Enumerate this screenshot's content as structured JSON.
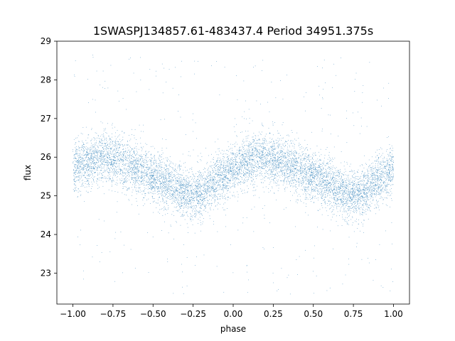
{
  "chart_data": {
    "type": "scatter",
    "title": "1SWASPJ134857.61-483437.4 Period 34951.375s",
    "xlabel": "phase",
    "ylabel": "flux",
    "xlim": [
      -1.1,
      1.1
    ],
    "ylim": [
      22.2,
      29.0
    ],
    "xticks": [
      -1.0,
      -0.75,
      -0.5,
      -0.25,
      0.0,
      0.25,
      0.5,
      0.75,
      1.0
    ],
    "xtick_labels": [
      "−1.00",
      "−0.75",
      "−0.50",
      "−0.25",
      "0.00",
      "0.25",
      "0.50",
      "0.75",
      "1.00"
    ],
    "yticks": [
      23,
      24,
      25,
      26,
      27,
      28,
      29
    ],
    "ytick_labels": [
      "23",
      "24",
      "25",
      "26",
      "27",
      "28",
      "29"
    ],
    "grid": false,
    "point_color": "#1f77b4",
    "series": [
      {
        "values_description_points": [
          {
            "x": -1.0,
            "y": 25.7
          },
          {
            "x": -0.9,
            "y": 25.9
          },
          {
            "x": -0.8,
            "y": 26.0
          },
          {
            "x": -0.7,
            "y": 25.9
          },
          {
            "x": -0.6,
            "y": 25.7
          },
          {
            "x": -0.5,
            "y": 25.5
          },
          {
            "x": -0.4,
            "y": 25.3
          },
          {
            "x": -0.3,
            "y": 25.05
          },
          {
            "x": -0.25,
            "y": 25.0
          },
          {
            "x": -0.2,
            "y": 25.1
          },
          {
            "x": -0.1,
            "y": 25.4
          },
          {
            "x": 0.0,
            "y": 25.7
          },
          {
            "x": 0.1,
            "y": 25.9
          },
          {
            "x": 0.2,
            "y": 26.0
          },
          {
            "x": 0.3,
            "y": 25.9
          },
          {
            "x": 0.4,
            "y": 25.7
          },
          {
            "x": 0.5,
            "y": 25.5
          },
          {
            "x": 0.6,
            "y": 25.3
          },
          {
            "x": 0.7,
            "y": 25.05
          },
          {
            "x": 0.75,
            "y": 25.0
          },
          {
            "x": 0.8,
            "y": 25.1
          },
          {
            "x": 0.9,
            "y": 25.4
          },
          {
            "x": 1.0,
            "y": 25.7
          }
        ]
      }
    ]
  }
}
